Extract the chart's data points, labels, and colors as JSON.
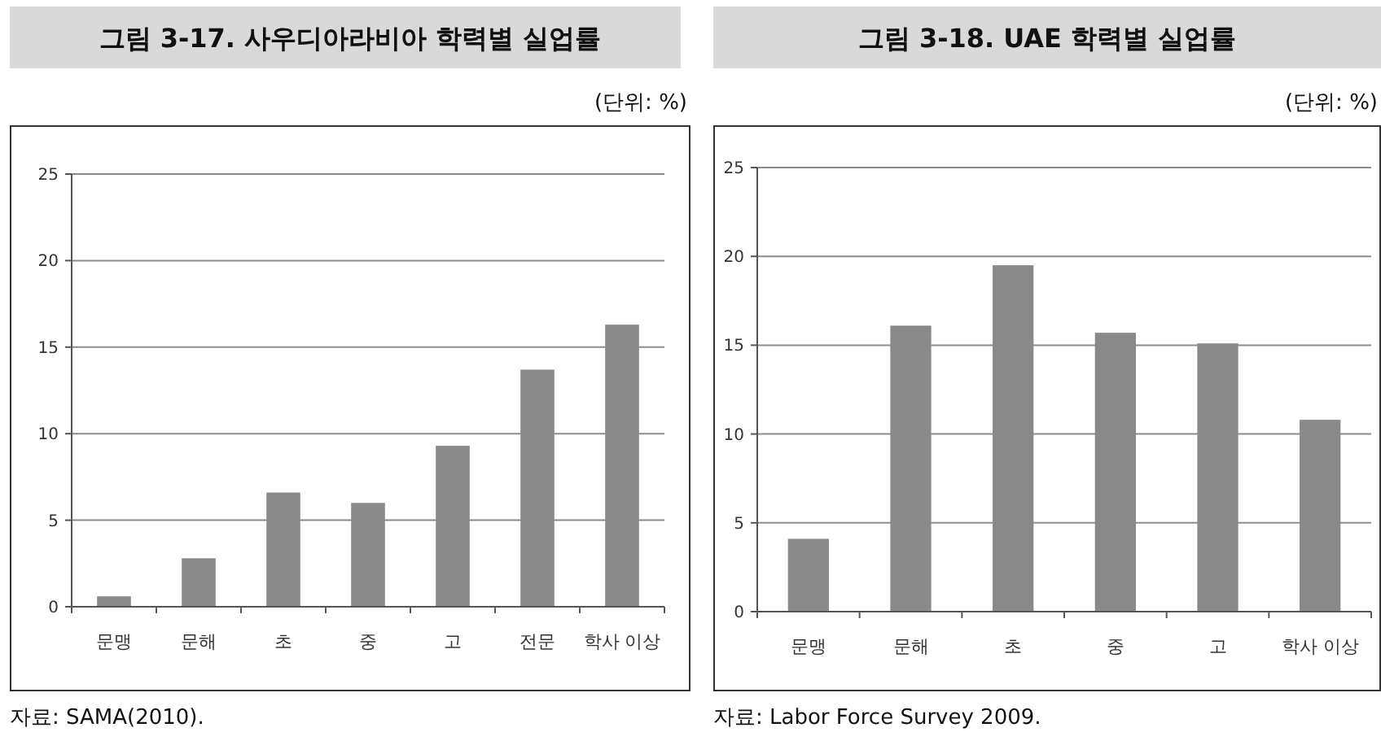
{
  "chart_data": [
    {
      "type": "bar",
      "title": "그림 3-17. 사우디아라비아 학력별 실업률",
      "categories": [
        "문맹",
        "문해",
        "초",
        "중",
        "고",
        "전문",
        "학사 이상"
      ],
      "values": [
        0.6,
        2.8,
        6.6,
        6.0,
        9.3,
        13.7,
        16.3
      ],
      "color": "#898989",
      "ylim": [
        0,
        25
      ],
      "yticks": [
        0,
        5,
        10,
        15,
        20,
        25
      ],
      "grid": "y",
      "annotations": [
        "(단위: %)",
        "자료: SAMA(2010)."
      ]
    },
    {
      "type": "bar",
      "title": "그림 3-18. UAE 학력별 실업률",
      "categories": [
        "문맹",
        "문해",
        "초",
        "중",
        "고",
        "학사 이상"
      ],
      "values": [
        4.1,
        16.1,
        19.5,
        15.7,
        15.1,
        10.8
      ],
      "color": "#898989",
      "ylim": [
        0,
        25
      ],
      "yticks": [
        0,
        5,
        10,
        15,
        20,
        25
      ],
      "grid": "y",
      "annotations": [
        "(단위: %)",
        "자료: Labor Force Survey 2009."
      ]
    }
  ]
}
